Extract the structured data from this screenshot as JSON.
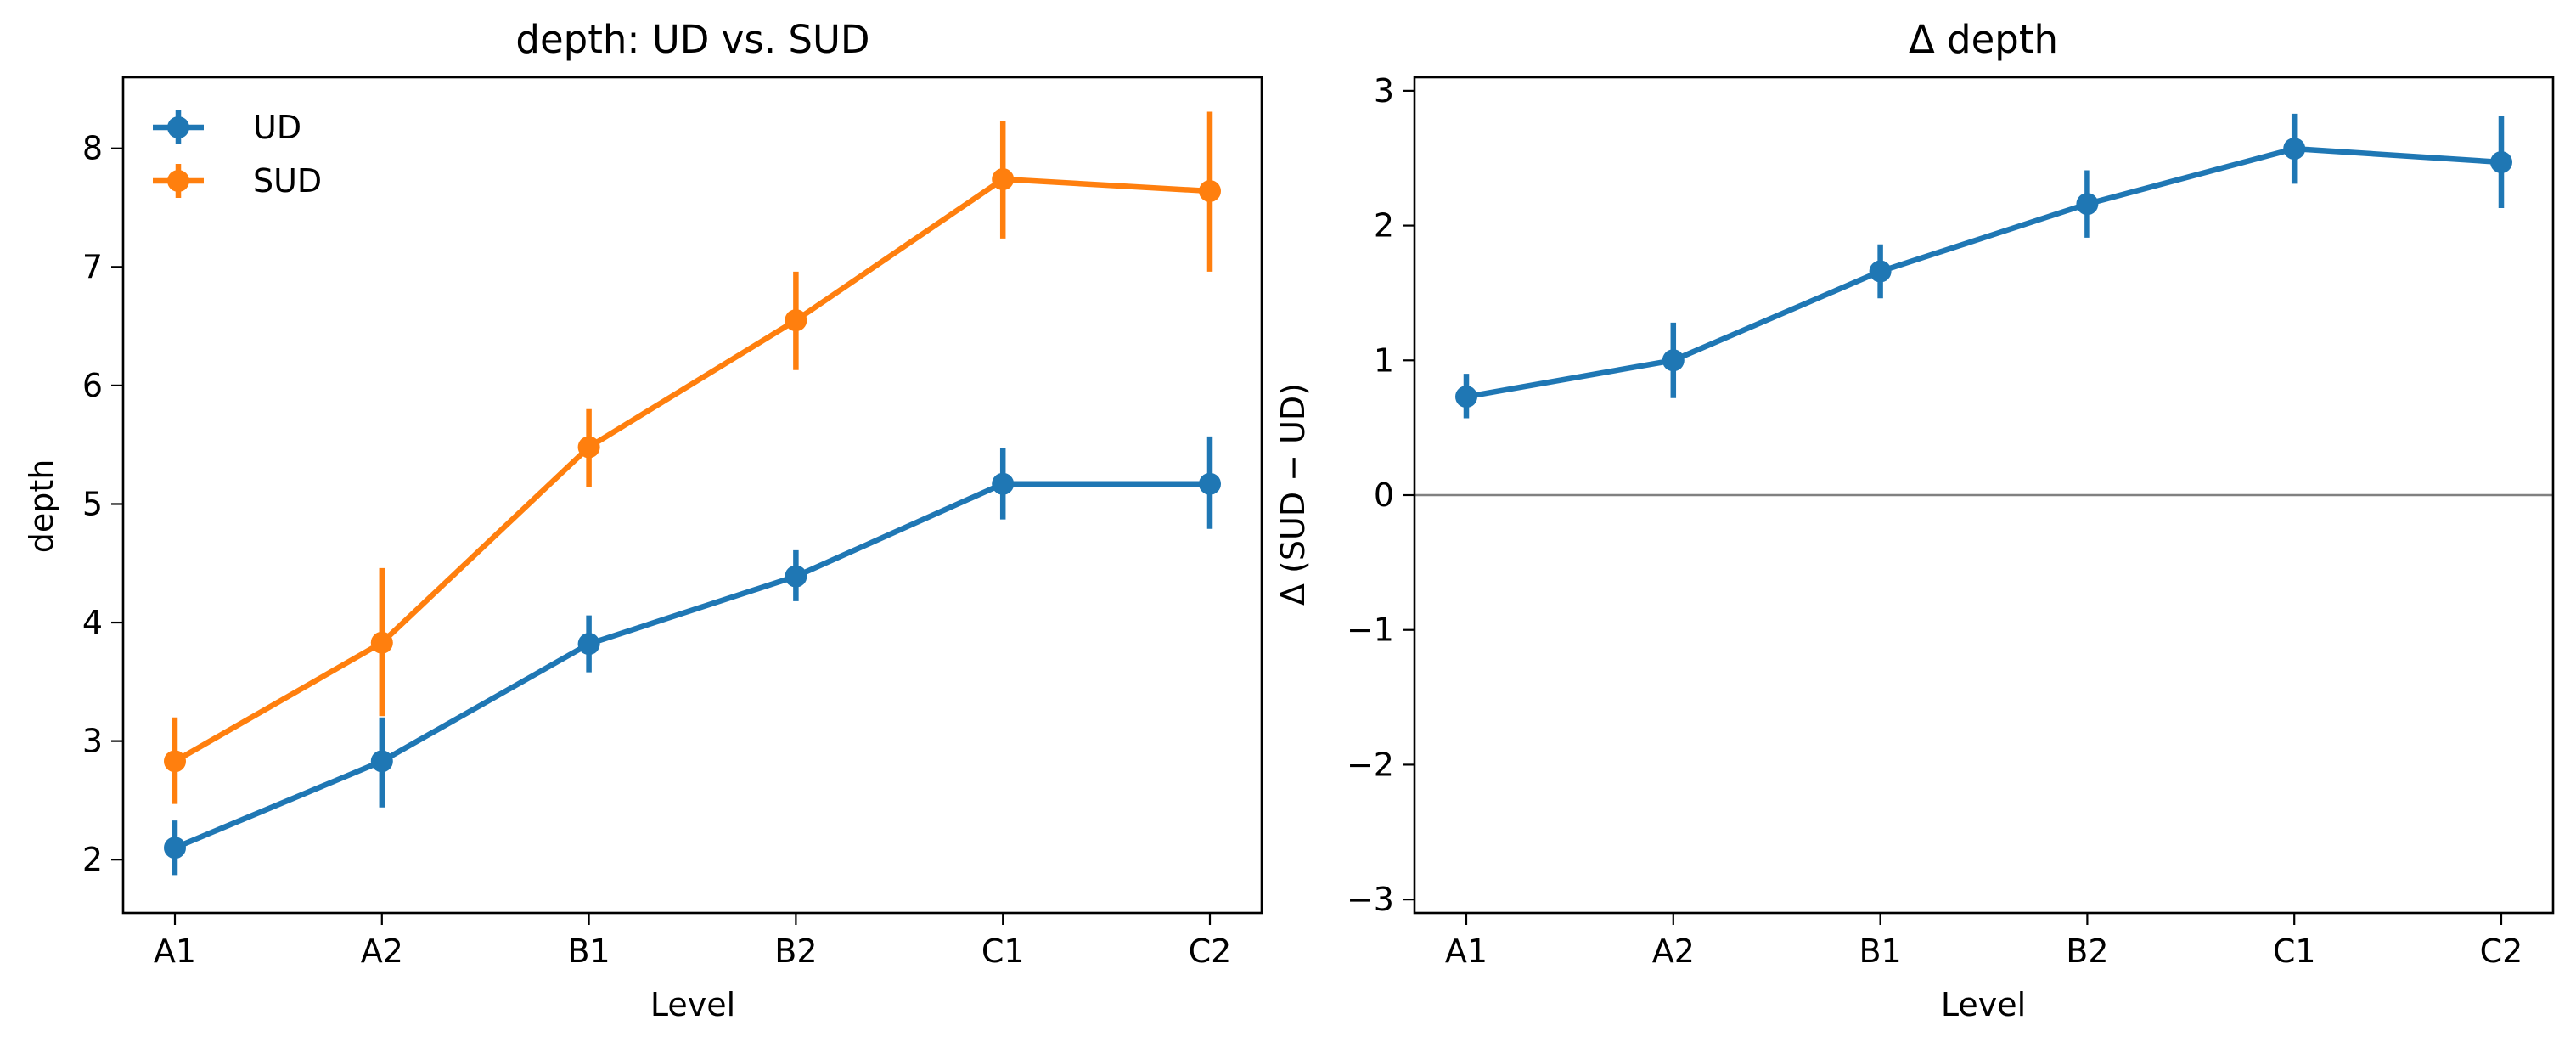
{
  "chart_data": [
    {
      "type": "line",
      "title": "depth: UD vs. SUD",
      "xlabel": "Level",
      "ylabel": "depth",
      "categories": [
        "A1",
        "A2",
        "B1",
        "B2",
        "C1",
        "C2"
      ],
      "ylim": [
        1.55,
        8.6
      ],
      "yticks": [
        "2",
        "3",
        "4",
        "5",
        "6",
        "7",
        "8"
      ],
      "grid": false,
      "legend": {
        "position": "top-left",
        "entries": [
          "UD",
          "SUD"
        ]
      },
      "series": [
        {
          "name": "UD",
          "color": "#1f77b4",
          "values": [
            2.1,
            2.83,
            3.82,
            4.39,
            5.17,
            5.17
          ],
          "err_low": [
            1.87,
            2.44,
            3.58,
            4.18,
            4.87,
            4.79
          ],
          "err_high": [
            2.33,
            3.2,
            4.06,
            4.61,
            5.47,
            5.57
          ]
        },
        {
          "name": "SUD",
          "color": "#ff7f0e",
          "values": [
            2.83,
            3.83,
            5.48,
            6.55,
            7.74,
            7.64
          ],
          "err_low": [
            2.47,
            3.21,
            5.14,
            6.13,
            7.24,
            6.96
          ],
          "err_high": [
            3.2,
            4.46,
            5.8,
            6.96,
            8.23,
            8.31
          ]
        }
      ]
    },
    {
      "type": "line",
      "title": "Δ depth",
      "xlabel": "Level",
      "ylabel": "Δ (SUD − UD)",
      "categories": [
        "A1",
        "A2",
        "B1",
        "B2",
        "C1",
        "C2"
      ],
      "ylim": [
        -3.1,
        3.1
      ],
      "yticks": [
        "3",
        "2",
        "1",
        "0",
        "−1",
        "−2",
        "−3"
      ],
      "grid": false,
      "reference_line": {
        "y": 0,
        "color": "#808080"
      },
      "series": [
        {
          "color": "#1f77b4",
          "values": [
            0.73,
            1.0,
            1.66,
            2.16,
            2.57,
            2.47
          ],
          "err_low": [
            0.57,
            0.72,
            1.46,
            1.91,
            2.31,
            2.13
          ],
          "err_high": [
            0.9,
            1.28,
            1.86,
            2.41,
            2.83,
            2.81
          ]
        }
      ]
    }
  ]
}
